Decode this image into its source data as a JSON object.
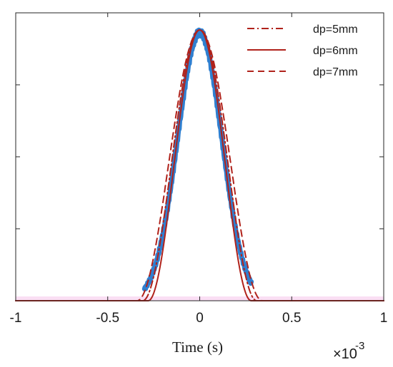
{
  "chart_data": {
    "type": "line",
    "xlabel": "Time (s)",
    "ylabel": "",
    "title": "",
    "x_multiplier_label": "×10",
    "x_multiplier_exponent": "-3",
    "xlim": [
      -1,
      1
    ],
    "ylim": [
      0,
      1
    ],
    "x_ticks": [
      -1,
      -0.5,
      0,
      0.5,
      1
    ],
    "x_tick_labels": [
      "-1",
      "-0.5",
      "0",
      "0.5",
      "1"
    ],
    "y_ticks": [
      0.25,
      0.5,
      0.75
    ],
    "grid": false,
    "legend_position": "top-right",
    "series": [
      {
        "kind": "measured",
        "color": "#2f7fd0",
        "x_start": -0.3,
        "x_end": 0.28,
        "center": 0.0,
        "peak": 0.99,
        "sigma": 0.12
      },
      {
        "name": "dp=5mm",
        "kind": "model",
        "style": "dashdot",
        "color": "#b0221b",
        "center": 0.0,
        "peak": 1.0,
        "half_width": 0.31
      },
      {
        "name": "dp=6mm",
        "kind": "model",
        "style": "solid",
        "color": "#b0221b",
        "center": 0.0,
        "peak": 1.0,
        "half_width": 0.28
      },
      {
        "name": "dp=7mm",
        "kind": "model",
        "style": "dashed",
        "color": "#b0221b",
        "center": 0.0,
        "peak": 1.0,
        "half_width": 0.34
      }
    ]
  }
}
